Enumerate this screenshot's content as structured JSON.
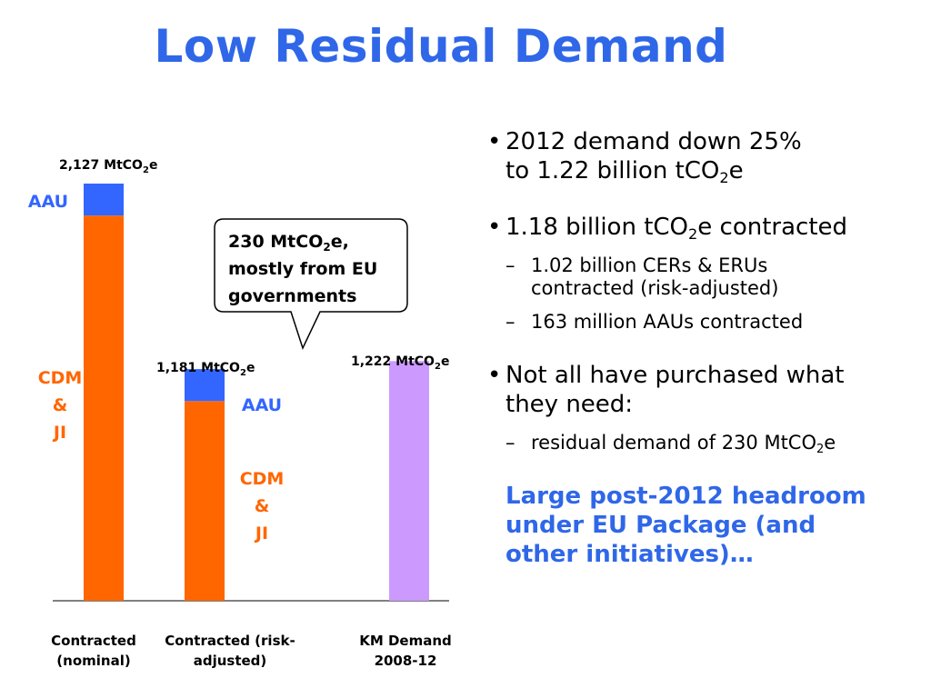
{
  "title": "Low Residual Demand",
  "chart_data": {
    "type": "bar",
    "stacked": true,
    "categories": [
      "Contracted\n(nominal)",
      "Contracted (risk-\nadjusted)",
      "KM Demand\n2008-12"
    ],
    "series": [
      {
        "name": "CDM & JI",
        "values": [
          1964,
          1018,
          null
        ],
        "color": "#ff6600"
      },
      {
        "name": "AAU",
        "values": [
          163,
          163,
          null
        ],
        "color": "#3366ff"
      },
      {
        "name": "",
        "values": [
          null,
          null,
          1222
        ],
        "color": "#cc99ff"
      }
    ],
    "totals_labels": [
      "2,127 MtCO",
      "1,181 MtCO",
      "1,222 MtCO"
    ],
    "ylim": [
      0,
      2127
    ],
    "segment_labels": {
      "aau": "AAU",
      "cdm": [
        "CDM",
        "&",
        "JI"
      ]
    },
    "callout": [
      "230 MtCO",
      "e,",
      "mostly from EU",
      "governments"
    ]
  },
  "bullets": [
    {
      "line1": "2012 demand down 25%",
      "line2a": "to 1.22 billion tCO",
      "line2b": "e",
      "subs": []
    },
    {
      "line1a": "1.18 billion tCO",
      "line1b": "e contracted",
      "subs": [
        {
          "l1": "1.02 billion CERs & ERUs",
          "l2": "contracted (risk-adjusted)"
        },
        {
          "l1": "163 million AAUs contracted"
        }
      ]
    },
    {
      "line1": "Not all have purchased what",
      "line2": "they need:",
      "subs": [
        {
          "a": "residual demand of 230 MtCO",
          "b": "e"
        }
      ]
    }
  ],
  "highlight": [
    "Large post-2012 headroom",
    "under EU Package (and",
    "other initiatives)…"
  ],
  "sub2": "2"
}
